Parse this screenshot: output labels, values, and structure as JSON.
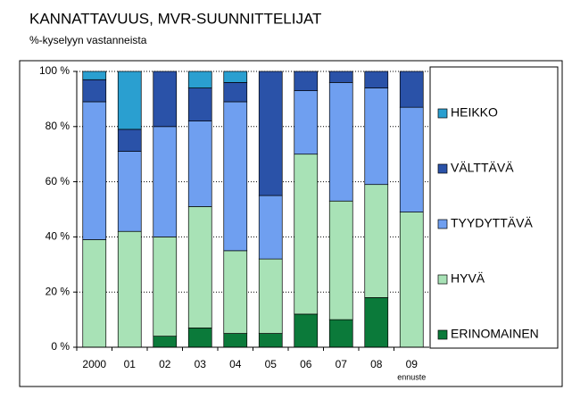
{
  "chart_data": {
    "type": "stacked_bar",
    "title": "KANNATTAVUUS, MVR-SUUNNITTELIJAT",
    "subtitle": "%-kyselyyn vastanneista",
    "annotation": "ennuste",
    "categories": [
      "2000",
      "01",
      "02",
      "03",
      "04",
      "05",
      "06",
      "07",
      "08",
      "09"
    ],
    "series": [
      {
        "name": "ERINOMAINEN",
        "color": "#0b7a3a",
        "values": [
          0,
          0,
          4,
          7,
          5,
          5,
          12,
          10,
          18,
          0
        ]
      },
      {
        "name": "HYVÄ",
        "color": "#a8e2b6",
        "values": [
          39,
          42,
          36,
          44,
          30,
          27,
          58,
          43,
          41,
          49
        ]
      },
      {
        "name": "TYYDYTTÄVÄ",
        "color": "#6f9ff0",
        "values": [
          50,
          29,
          40,
          31,
          54,
          23,
          23,
          43,
          35,
          38
        ]
      },
      {
        "name": "VÄLTTÄVÄ",
        "color": "#2a52a8",
        "values": [
          8,
          8,
          20,
          12,
          7,
          45,
          7,
          4,
          6,
          13
        ]
      },
      {
        "name": "HEIKKO",
        "color": "#2a9fd0",
        "values": [
          3,
          21,
          0,
          6,
          4,
          0,
          0,
          0,
          0,
          0
        ]
      }
    ],
    "ylim": [
      0,
      100
    ],
    "yticks": [
      {
        "value": 0,
        "label": "0 %"
      },
      {
        "value": 20,
        "label": "20 %"
      },
      {
        "value": 40,
        "label": "40 %"
      },
      {
        "value": 60,
        "label": "60 %"
      },
      {
        "value": 80,
        "label": "80 %"
      },
      {
        "value": 100,
        "label": "100 %"
      }
    ],
    "grid": true,
    "legend": "right"
  }
}
